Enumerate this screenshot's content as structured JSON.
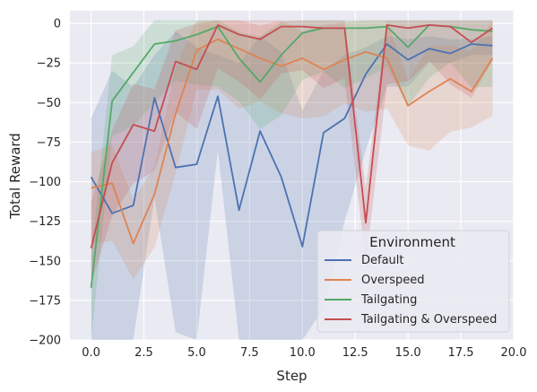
{
  "chart_data": {
    "type": "line",
    "title": "",
    "xlabel": "Step",
    "ylabel": "Total Reward",
    "xlim": [
      -1,
      20
    ],
    "ylim": [
      -200,
      8
    ],
    "xticks": [
      0,
      2.5,
      5,
      7.5,
      10,
      12.5,
      15,
      17.5,
      20
    ],
    "xtick_labels": [
      "0.0",
      "2.5",
      "5.0",
      "7.5",
      "10.0",
      "12.5",
      "15.0",
      "17.5",
      "20.0"
    ],
    "yticks": [
      0,
      -25,
      -50,
      -75,
      -100,
      -125,
      -150,
      -175,
      -200
    ],
    "ytick_labels": [
      "0",
      "−25",
      "−50",
      "−75",
      "−100",
      "−125",
      "−150",
      "−175",
      "−200"
    ],
    "grid": true,
    "legend": {
      "title": "Environment",
      "position": "lower-right"
    },
    "x": [
      0,
      1,
      2,
      3,
      4,
      5,
      6,
      7,
      8,
      9,
      10,
      11,
      12,
      13,
      14,
      15,
      16,
      17,
      18,
      19
    ],
    "series": [
      {
        "name": "Default",
        "color": "#4c72b0",
        "values": [
          -97,
          -120,
          -115,
          -47,
          -91,
          -89,
          -46,
          -118,
          -68,
          -97,
          -141,
          -69,
          -60,
          -32,
          -13,
          -23,
          -16,
          -19,
          -13,
          -14
        ],
        "lower": [
          -200,
          -200,
          -200,
          -110,
          -195,
          -200,
          -80,
          -220,
          -220,
          -220,
          -220,
          -180,
          -125,
          -80,
          -40,
          -40,
          -25,
          -25,
          -20,
          -20
        ],
        "upper": [
          -60,
          -30,
          -40,
          -20,
          -5,
          -15,
          -20,
          -25,
          -8,
          -18,
          -55,
          -30,
          -20,
          -15,
          -8,
          -10,
          -8,
          -10,
          -10,
          -8
        ]
      },
      {
        "name": "Overspeed",
        "color": "#dd8452",
        "values": [
          -104,
          -101,
          -139,
          -108,
          -57,
          -17,
          -10,
          -16,
          -22,
          -27,
          -22,
          -29,
          -23,
          -18,
          -22,
          -52,
          -43,
          -35,
          -43,
          -22
        ]
      },
      {
        "name": "Tailgating",
        "color": "#55a868",
        "values": [
          -167,
          -49,
          -31,
          -13,
          -11,
          -7,
          -2,
          -22,
          -37,
          -20,
          -6,
          -3,
          -3,
          -3,
          -2,
          -15,
          -1,
          -2,
          -4,
          -5
        ]
      },
      {
        "name": "Tailgating & Overspeed",
        "color": "#c44e52",
        "values": [
          -142,
          -88,
          -64,
          -68,
          -24,
          -29,
          -1,
          -7,
          -10,
          -2,
          -2,
          -3,
          -3,
          -126,
          -1,
          -3,
          -1,
          -2,
          -12,
          -3
        ]
      }
    ]
  }
}
